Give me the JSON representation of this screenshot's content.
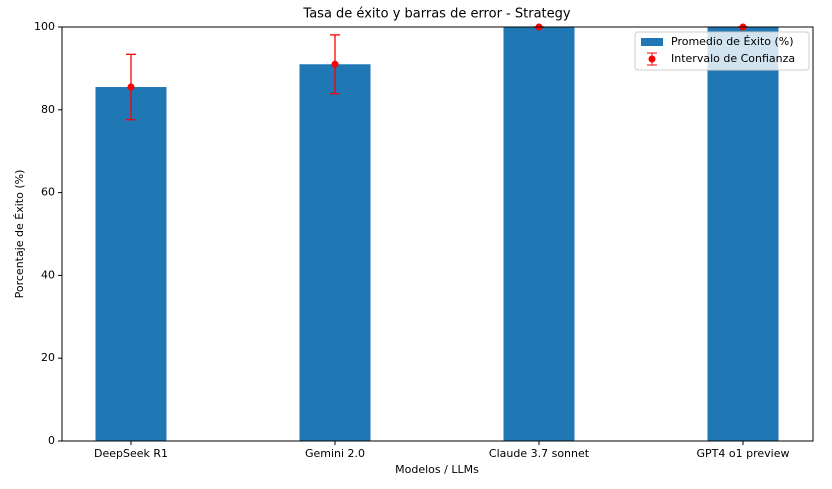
{
  "chart_data": {
    "type": "bar",
    "title": "Tasa de éxito y barras de error - Strategy",
    "x_label": "Modelos / LLMs",
    "y_label": "Porcentaje de Éxito (%)",
    "categories": [
      "DeepSeek R1",
      "Gemini 2.0",
      "Claude 3.7 sonnet",
      "GPT4 o1 preview"
    ],
    "series": [
      {
        "name": "Promedio de Éxito (%)",
        "color": "#1f77b4",
        "values": [
          85.5,
          91,
          100,
          100
        ]
      },
      {
        "name": "Intervalo de Confianza",
        "color": "#ff0000",
        "values": [
          85.5,
          91,
          100,
          100
        ],
        "errors": [
          7.9,
          7.1,
          0,
          0
        ]
      }
    ],
    "ylim": [
      0,
      100
    ],
    "yticks": [
      0,
      20,
      40,
      60,
      80,
      100
    ],
    "grid": false,
    "legend": "upper right"
  }
}
